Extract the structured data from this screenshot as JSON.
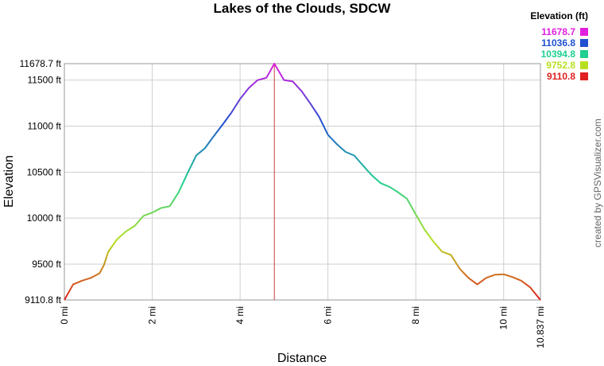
{
  "chart_data": {
    "type": "line",
    "title": "Lakes of the Clouds, SDCW",
    "xlabel": "Distance",
    "ylabel": "Elevation",
    "credit": "created by GPSVisualizer.com",
    "grid": true,
    "xlim": [
      0,
      10.837
    ],
    "ylim": [
      9110.8,
      11678.7
    ],
    "xticks": [
      {
        "value": 0,
        "label": "0 mi"
      },
      {
        "value": 2,
        "label": "2 mi"
      },
      {
        "value": 4,
        "label": "4 mi"
      },
      {
        "value": 6,
        "label": "6 mi"
      },
      {
        "value": 8,
        "label": "8 mi"
      },
      {
        "value": 10,
        "label": "10 mi"
      },
      {
        "value": 10.837,
        "label": "10.837 mi"
      }
    ],
    "yticks": [
      {
        "value": 9110.8,
        "label": "9110.8 ft"
      },
      {
        "value": 9500,
        "label": "9500 ft"
      },
      {
        "value": 10000,
        "label": "10000 ft"
      },
      {
        "value": 10500,
        "label": "10500 ft"
      },
      {
        "value": 11000,
        "label": "11000 ft"
      },
      {
        "value": 11500,
        "label": "11500 ft"
      },
      {
        "value": 11678.7,
        "label": "11678.7 ft"
      }
    ],
    "color_scale": {
      "title": "Elevation (ft)",
      "stops": [
        {
          "value": 11678.7,
          "color": "#e020e0"
        },
        {
          "value": 11036.8,
          "color": "#2050d0"
        },
        {
          "value": 10394.8,
          "color": "#20d090"
        },
        {
          "value": 9752.8,
          "color": "#b8e020"
        },
        {
          "value": 9110.8,
          "color": "#e02020"
        }
      ]
    },
    "marker_line": {
      "x": 4.78,
      "color": "#c84040"
    },
    "x": [
      0,
      0.2,
      0.4,
      0.6,
      0.8,
      0.9,
      1.0,
      1.2,
      1.4,
      1.6,
      1.8,
      2.0,
      2.2,
      2.4,
      2.6,
      2.8,
      3.0,
      3.2,
      3.4,
      3.6,
      3.8,
      4.0,
      4.2,
      4.4,
      4.6,
      4.78,
      5.0,
      5.2,
      5.4,
      5.6,
      5.8,
      6.0,
      6.2,
      6.4,
      6.6,
      6.8,
      7.0,
      7.2,
      7.4,
      7.6,
      7.8,
      8.0,
      8.2,
      8.4,
      8.6,
      8.8,
      9.0,
      9.2,
      9.4,
      9.6,
      9.8,
      10.0,
      10.2,
      10.4,
      10.6,
      10.837
    ],
    "values": [
      9110.8,
      9280,
      9320,
      9350,
      9400,
      9490,
      9635,
      9770,
      9855,
      9915,
      10025,
      10060,
      10110,
      10130,
      10280,
      10485,
      10680,
      10760,
      10890,
      11015,
      11145,
      11295,
      11415,
      11500,
      11525,
      11678.7,
      11500,
      11485,
      11380,
      11245,
      11100,
      10905,
      10805,
      10720,
      10680,
      10570,
      10465,
      10380,
      10340,
      10280,
      10210,
      10040,
      9875,
      9745,
      9635,
      9600,
      9450,
      9350,
      9280,
      9350,
      9385,
      9390,
      9360,
      9320,
      9250,
      9110.8
    ]
  }
}
